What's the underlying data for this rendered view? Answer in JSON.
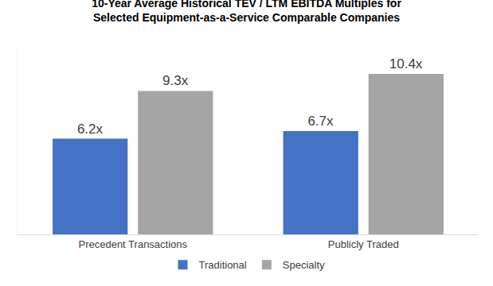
{
  "chart_data": {
    "type": "bar",
    "title": "10-Year Average Historical TEV / LTM EBITDA Multiples for\nSelected Equipment-as-a-Service Comparable Companies",
    "categories": [
      "Precedent Transactions",
      "Publicly Traded"
    ],
    "series": [
      {
        "name": "Traditional",
        "color": "#4472c4",
        "values": [
          6.2,
          6.7
        ],
        "value_labels": [
          "6.2x",
          "6.7x"
        ]
      },
      {
        "name": "Specialty",
        "color": "#a5a5a5",
        "values": [
          9.3,
          10.4
        ],
        "value_labels": [
          "9.3x",
          "10.4x"
        ]
      }
    ],
    "ylim": [
      0,
      12
    ],
    "grid": false,
    "legend": "bottom",
    "stacked": false,
    "data_labels": true,
    "tick_labels": "x"
  }
}
